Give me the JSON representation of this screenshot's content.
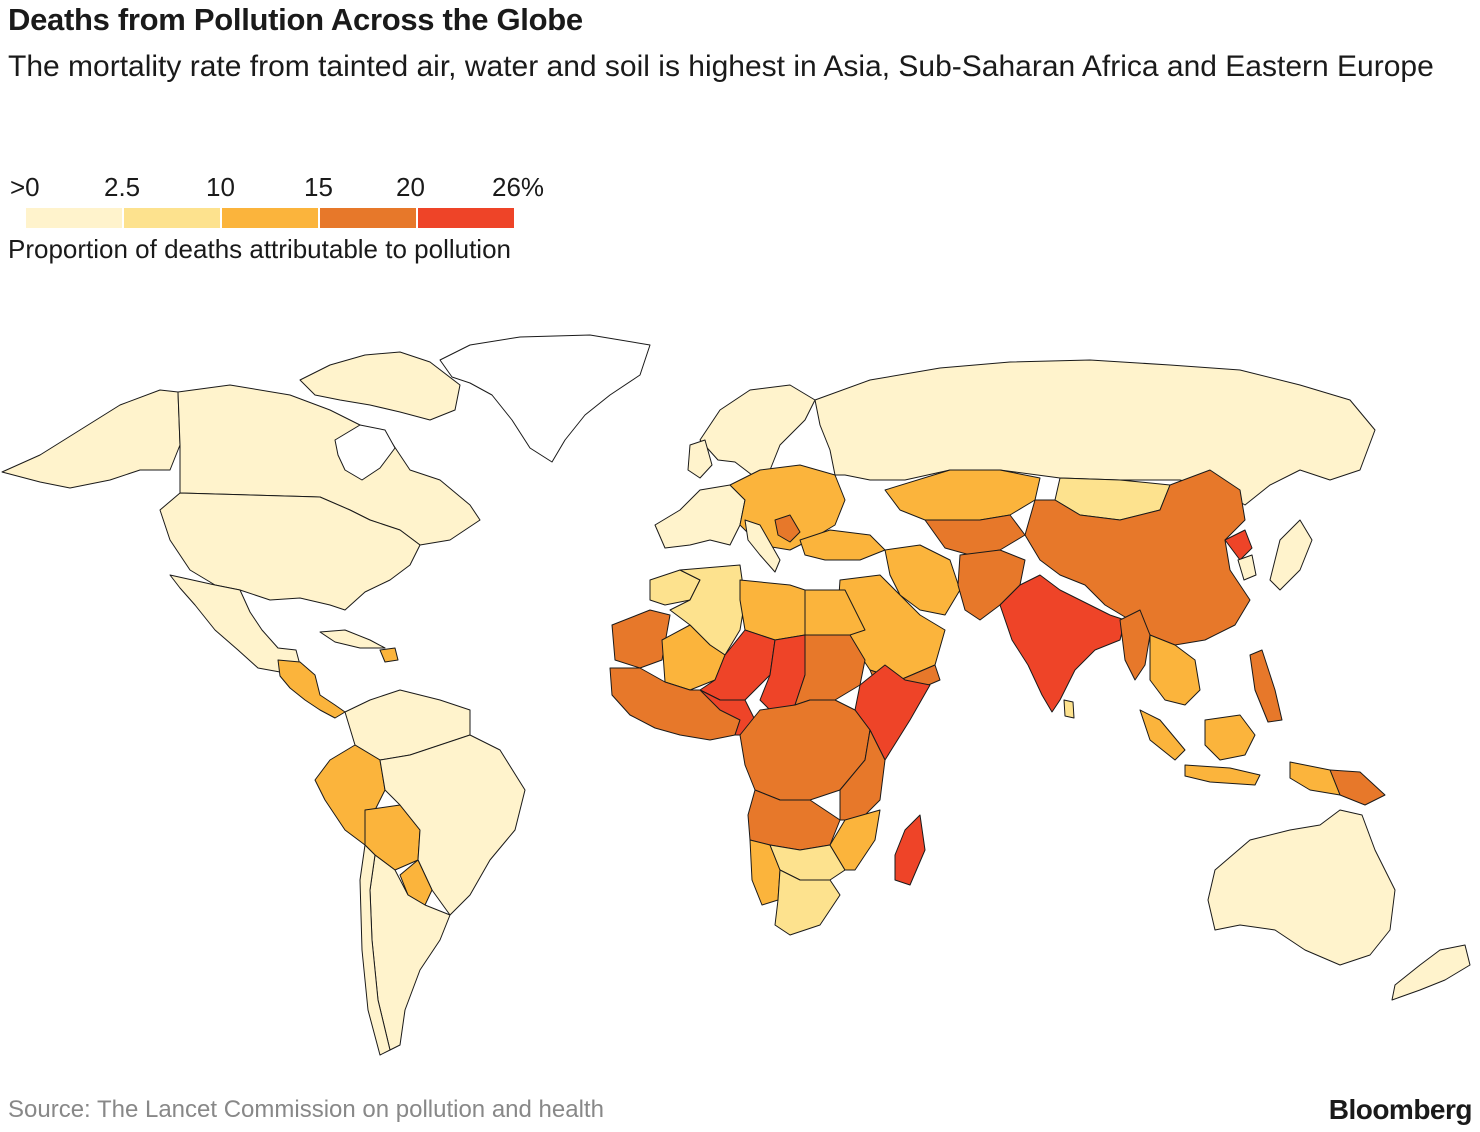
{
  "header": {
    "title": "Deaths from Pollution Across the Globe",
    "subtitle": "The mortality rate from tainted air, water and soil is highest in Asia, Sub-Saharan Africa and Eastern Europe"
  },
  "legend": {
    "ticks": [
      ">0",
      "2.5",
      "10",
      "15",
      "20",
      "26%"
    ],
    "caption": "Proportion of deaths attributable to pollution",
    "colors": [
      "#fff3cc",
      "#fde28e",
      "#fbb43c",
      "#e7782a",
      "#ee4428"
    ]
  },
  "footer": {
    "source": "Source: The Lancet Commission on pollution and health",
    "brand": "Bloomberg"
  },
  "colors": {
    "no_data": "#ffffff",
    "border": "#1a1a1a"
  }
}
